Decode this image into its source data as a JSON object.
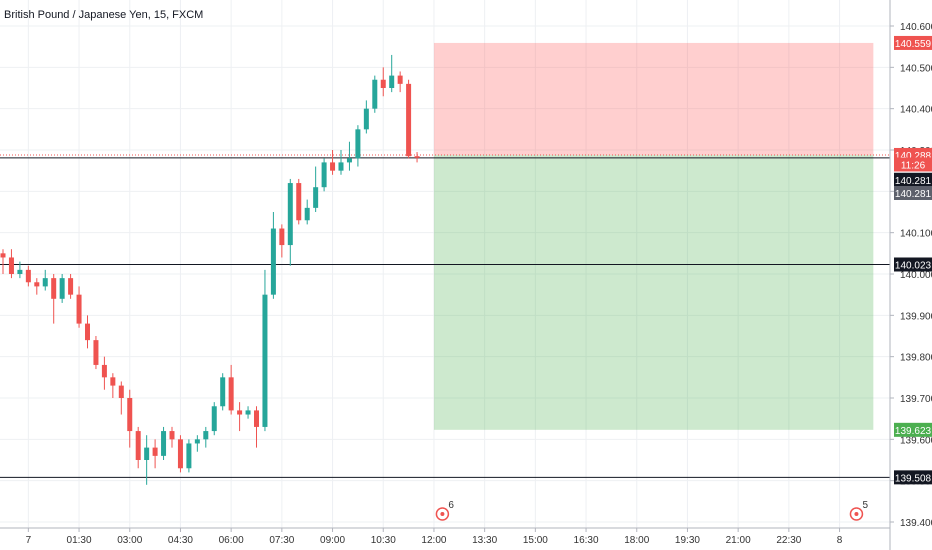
{
  "chart_data": {
    "type": "candlestick",
    "title": "British Pound / Japanese Yen, 15, FXCM",
    "ylim": [
      139.4,
      140.6
    ],
    "y_ticks": [
      {
        "value": 140.6,
        "label": "140.600"
      },
      {
        "value": 140.5,
        "label": "140.500"
      },
      {
        "value": 140.4,
        "label": "140.400"
      },
      {
        "value": 140.3,
        "label": "140.300"
      },
      {
        "value": 140.2,
        "label": "140.200"
      },
      {
        "value": 140.1,
        "label": "140.100"
      },
      {
        "value": 140.0,
        "label": "140.000"
      },
      {
        "value": 139.9,
        "label": "139.900"
      },
      {
        "value": 139.8,
        "label": "139.800"
      },
      {
        "value": 139.7,
        "label": "139.700"
      },
      {
        "value": 139.6,
        "label": "139.600"
      },
      {
        "value": 139.5,
        "label": "139.500"
      },
      {
        "value": 139.4,
        "label": "139.400"
      }
    ],
    "x_ticks": [
      {
        "index": 3,
        "label": "7"
      },
      {
        "index": 9,
        "label": "01:30"
      },
      {
        "index": 15,
        "label": "03:00"
      },
      {
        "index": 21,
        "label": "04:30"
      },
      {
        "index": 27,
        "label": "06:00"
      },
      {
        "index": 33,
        "label": "07:30"
      },
      {
        "index": 39,
        "label": "09:00"
      },
      {
        "index": 45,
        "label": "10:30"
      },
      {
        "index": 51,
        "label": "12:00"
      },
      {
        "index": 57,
        "label": "13:30"
      },
      {
        "index": 63,
        "label": "15:00"
      },
      {
        "index": 69,
        "label": "16:30"
      },
      {
        "index": 75,
        "label": "18:00"
      },
      {
        "index": 81,
        "label": "19:30"
      },
      {
        "index": 87,
        "label": "21:00"
      },
      {
        "index": 93,
        "label": "22:30"
      },
      {
        "index": 99,
        "label": "8"
      }
    ],
    "x_index_range": [
      0,
      105
    ],
    "candles": [
      {
        "o": 140.05,
        "h": 140.06,
        "l": 140.0,
        "c": 140.04
      },
      {
        "o": 140.04,
        "h": 140.06,
        "l": 139.99,
        "c": 140.0
      },
      {
        "o": 140.0,
        "h": 140.03,
        "l": 139.99,
        "c": 140.01
      },
      {
        "o": 140.01,
        "h": 140.02,
        "l": 139.97,
        "c": 139.98
      },
      {
        "o": 139.98,
        "h": 139.99,
        "l": 139.95,
        "c": 139.97
      },
      {
        "o": 139.97,
        "h": 140.01,
        "l": 139.96,
        "c": 139.99
      },
      {
        "o": 139.99,
        "h": 140.0,
        "l": 139.88,
        "c": 139.94
      },
      {
        "o": 139.94,
        "h": 140.0,
        "l": 139.93,
        "c": 139.99
      },
      {
        "o": 139.99,
        "h": 140.0,
        "l": 139.94,
        "c": 139.95
      },
      {
        "o": 139.95,
        "h": 139.97,
        "l": 139.87,
        "c": 139.88
      },
      {
        "o": 139.88,
        "h": 139.9,
        "l": 139.82,
        "c": 139.84
      },
      {
        "o": 139.84,
        "h": 139.85,
        "l": 139.77,
        "c": 139.78
      },
      {
        "o": 139.78,
        "h": 139.8,
        "l": 139.72,
        "c": 139.75
      },
      {
        "o": 139.75,
        "h": 139.76,
        "l": 139.7,
        "c": 139.73
      },
      {
        "o": 139.73,
        "h": 139.74,
        "l": 139.66,
        "c": 139.7
      },
      {
        "o": 139.7,
        "h": 139.72,
        "l": 139.58,
        "c": 139.62
      },
      {
        "o": 139.62,
        "h": 139.63,
        "l": 139.53,
        "c": 139.55
      },
      {
        "o": 139.55,
        "h": 139.61,
        "l": 139.49,
        "c": 139.58
      },
      {
        "o": 139.58,
        "h": 139.6,
        "l": 139.53,
        "c": 139.56
      },
      {
        "o": 139.56,
        "h": 139.63,
        "l": 139.55,
        "c": 139.62
      },
      {
        "o": 139.62,
        "h": 139.63,
        "l": 139.58,
        "c": 139.6
      },
      {
        "o": 139.6,
        "h": 139.61,
        "l": 139.52,
        "c": 139.53
      },
      {
        "o": 139.53,
        "h": 139.6,
        "l": 139.52,
        "c": 139.59
      },
      {
        "o": 139.59,
        "h": 139.61,
        "l": 139.57,
        "c": 139.6
      },
      {
        "o": 139.6,
        "h": 139.63,
        "l": 139.58,
        "c": 139.62
      },
      {
        "o": 139.62,
        "h": 139.69,
        "l": 139.61,
        "c": 139.68
      },
      {
        "o": 139.68,
        "h": 139.76,
        "l": 139.67,
        "c": 139.75
      },
      {
        "o": 139.75,
        "h": 139.78,
        "l": 139.66,
        "c": 139.67
      },
      {
        "o": 139.67,
        "h": 139.69,
        "l": 139.62,
        "c": 139.66
      },
      {
        "o": 139.66,
        "h": 139.68,
        "l": 139.65,
        "c": 139.67
      },
      {
        "o": 139.67,
        "h": 139.68,
        "l": 139.58,
        "c": 139.63
      },
      {
        "o": 139.63,
        "h": 140.01,
        "l": 139.62,
        "c": 139.95
      },
      {
        "o": 139.95,
        "h": 140.15,
        "l": 139.94,
        "c": 140.11
      },
      {
        "o": 140.11,
        "h": 140.12,
        "l": 140.04,
        "c": 140.07
      },
      {
        "o": 140.07,
        "h": 140.23,
        "l": 140.02,
        "c": 140.22
      },
      {
        "o": 140.22,
        "h": 140.23,
        "l": 140.12,
        "c": 140.13
      },
      {
        "o": 140.13,
        "h": 140.18,
        "l": 140.12,
        "c": 140.16
      },
      {
        "o": 140.16,
        "h": 140.26,
        "l": 140.15,
        "c": 140.21
      },
      {
        "o": 140.21,
        "h": 140.28,
        "l": 140.2,
        "c": 140.27
      },
      {
        "o": 140.27,
        "h": 140.3,
        "l": 140.24,
        "c": 140.25
      },
      {
        "o": 140.25,
        "h": 140.3,
        "l": 140.24,
        "c": 140.27
      },
      {
        "o": 140.27,
        "h": 140.32,
        "l": 140.25,
        "c": 140.28
      },
      {
        "o": 140.28,
        "h": 140.36,
        "l": 140.26,
        "c": 140.35
      },
      {
        "o": 140.35,
        "h": 140.42,
        "l": 140.34,
        "c": 140.4
      },
      {
        "o": 140.4,
        "h": 140.48,
        "l": 140.39,
        "c": 140.47
      },
      {
        "o": 140.47,
        "h": 140.5,
        "l": 140.43,
        "c": 140.45
      },
      {
        "o": 140.45,
        "h": 140.53,
        "l": 140.44,
        "c": 140.48
      },
      {
        "o": 140.48,
        "h": 140.49,
        "l": 140.44,
        "c": 140.46
      },
      {
        "o": 140.46,
        "h": 140.47,
        "l": 140.28,
        "c": 140.285
      },
      {
        "o": 140.285,
        "h": 140.295,
        "l": 140.27,
        "c": 140.281
      }
    ],
    "horizontal_lines": [
      {
        "value": 140.281,
        "label": "140.281",
        "style": "solid"
      },
      {
        "value": 140.023,
        "label": "140.023",
        "style": "solid"
      },
      {
        "value": 139.508,
        "label": "139.508",
        "style": "solid"
      }
    ],
    "position": {
      "entry": 140.288,
      "stop": 140.559,
      "target": 139.623,
      "x_start_index": 51,
      "x_end_index": 103,
      "entry_label": "140.288",
      "stop_label": "140.559",
      "target_label": "139.623"
    },
    "price_badges": [
      {
        "value": 140.559,
        "label": "140.559",
        "bg": "#ef5350",
        "fg": "#ffffff"
      },
      {
        "value": 140.288,
        "label": "140.288",
        "bg": "#ef5350",
        "fg": "#ffffff"
      },
      {
        "value": 140.265,
        "label": "11:26",
        "bg": "#ef5350",
        "fg": "#ffffff"
      },
      {
        "value": 140.228,
        "label": "140.281",
        "bg": "#131722",
        "fg": "#ffffff"
      },
      {
        "value": 140.196,
        "label": "140.281",
        "bg": "#5d606b",
        "fg": "#ffffff"
      },
      {
        "value": 140.023,
        "label": "140.023",
        "bg": "#131722",
        "fg": "#ffffff"
      },
      {
        "value": 139.623,
        "label": "139.623",
        "bg": "#4caf50",
        "fg": "#ffffff"
      },
      {
        "value": 139.508,
        "label": "139.508",
        "bg": "#131722",
        "fg": "#ffffff"
      }
    ],
    "events": [
      {
        "index": 52,
        "count": "6"
      },
      {
        "index": 101,
        "count": "5"
      }
    ],
    "colors": {
      "up": "#26a69a",
      "down": "#ef5350",
      "grid": "#eef0f3",
      "loss_zone": "rgba(255,82,82,0.28)",
      "profit_zone": "rgba(76,175,80,0.28)"
    },
    "grid": true
  }
}
